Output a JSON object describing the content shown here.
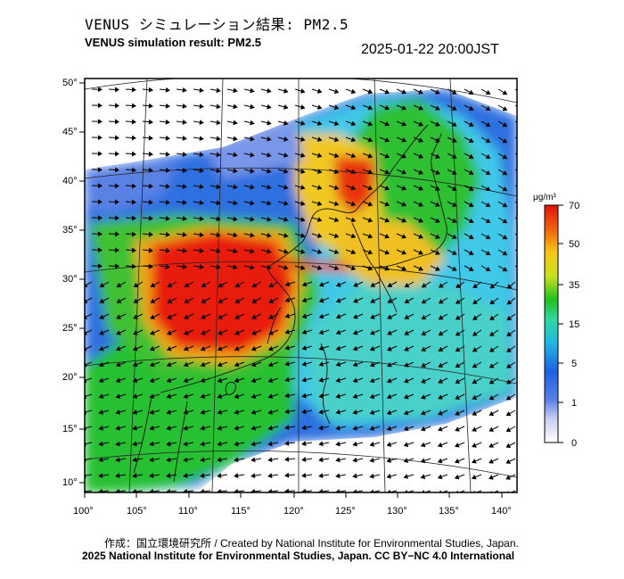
{
  "title_jp": "VENUS シミュレーション結果: PM2.5",
  "title_en": "VENUS simulation result: PM2.5",
  "timestamp": "2025-01-22 20:00JST",
  "colorbar": {
    "unit": "μg/m³",
    "ticks": [
      "70",
      "50",
      "35",
      "15",
      "5",
      "1",
      "0"
    ]
  },
  "lat_ticks": [
    "50°",
    "45°",
    "40°",
    "35°",
    "30°",
    "25°",
    "20°",
    "15°",
    "10°"
  ],
  "lon_ticks": [
    "100°",
    "105°",
    "110°",
    "115°",
    "120°",
    "125°",
    "130°",
    "135°",
    "140°"
  ],
  "credit_line_1": "作成：国立環境研究所 / Created by National Institute for Environmental Studies, Japan.",
  "credit_line_2": "2025 National Institute for Environmental Studies, Japan. CC BY−NC 4.0 International",
  "colors": {
    "very_high": "#e8140a",
    "high": "#f07a10",
    "mid_high": "#f2c41a",
    "mid": "#20c020",
    "low": "#30d0c8",
    "very_low": "#2a6de0",
    "minimal": "#d8dcf2"
  }
}
